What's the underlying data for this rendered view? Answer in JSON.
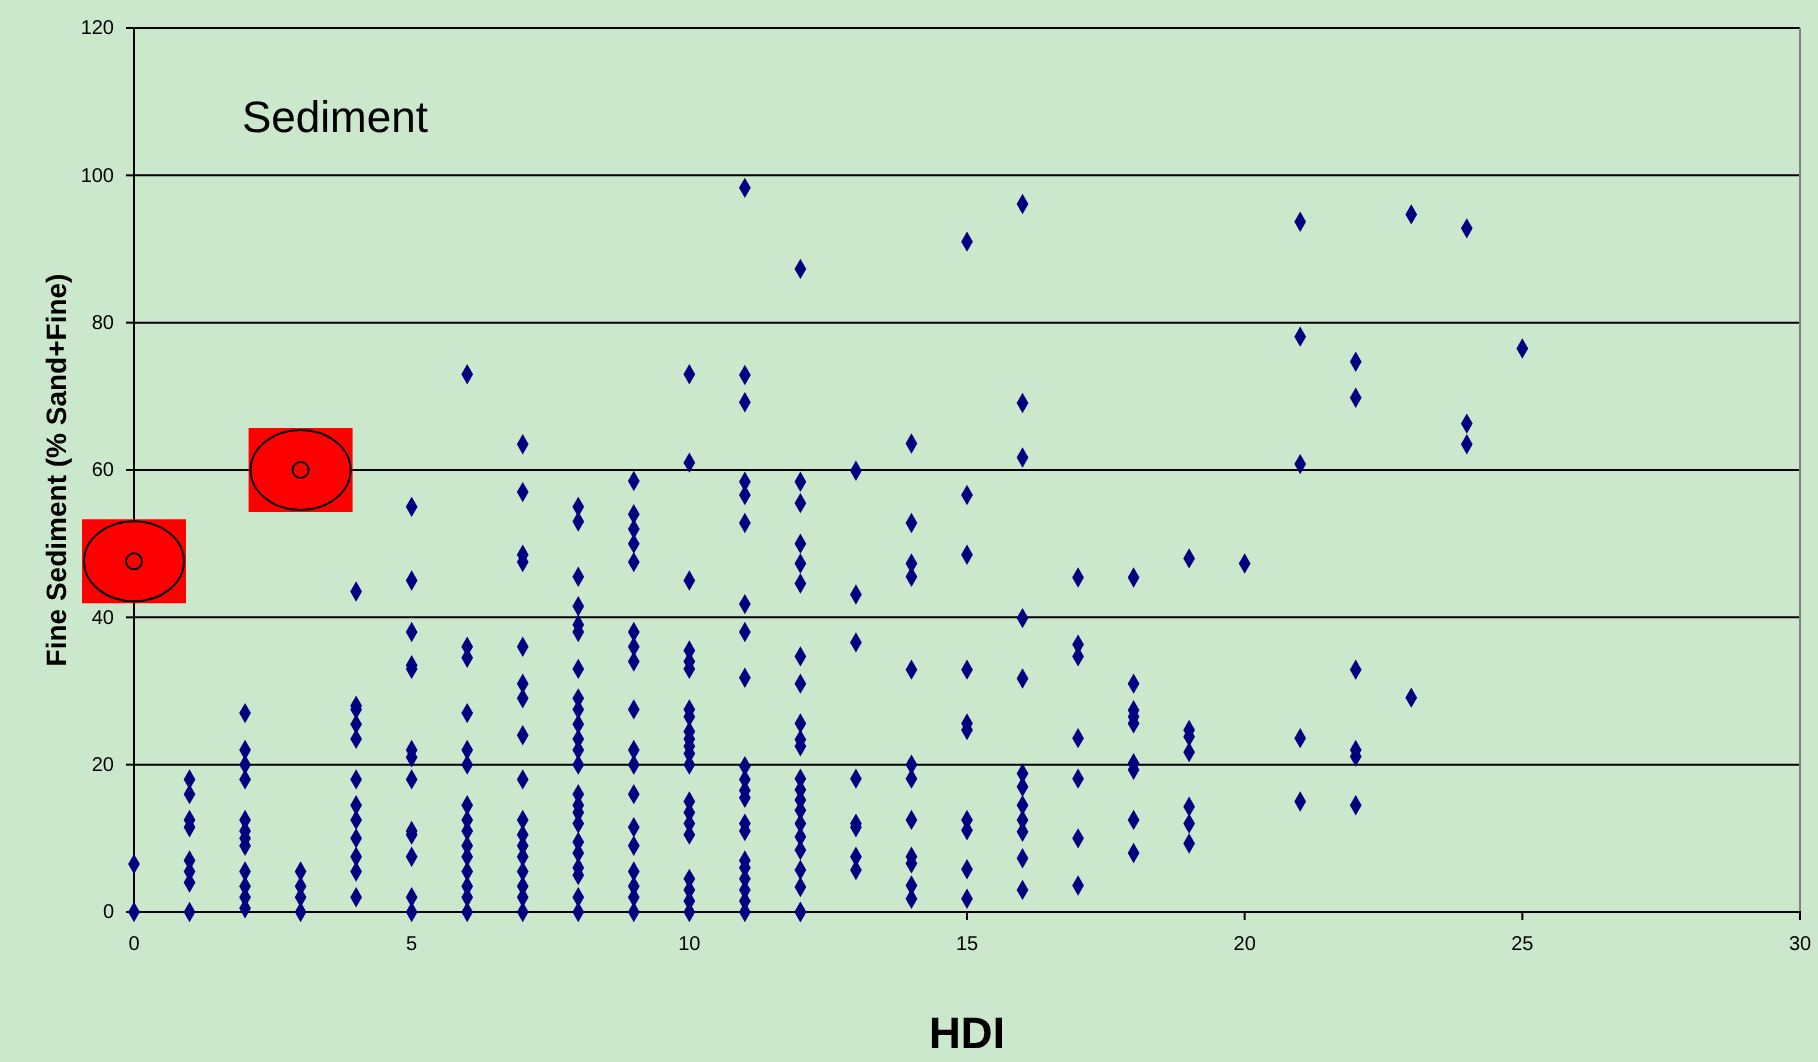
{
  "chart_data": {
    "type": "scatter",
    "title": "Sediment",
    "xlabel": "HDI",
    "ylabel": "Fine Sediment (% Sand+Fine)",
    "xlim": [
      0,
      30
    ],
    "xticks": [
      0,
      5,
      10,
      15,
      20,
      25,
      30
    ],
    "ylim": [
      0,
      120
    ],
    "yticks": [
      0,
      20,
      40,
      60,
      80,
      100,
      120
    ],
    "grid": "y",
    "series": [
      {
        "color": "#000080",
        "marker": "diamond",
        "x": [
          0,
          0,
          1,
          1,
          1,
          1,
          1,
          1,
          1,
          1,
          2,
          2,
          2,
          2,
          2,
          2,
          2,
          2,
          2,
          2,
          2,
          2,
          3,
          3,
          3,
          3,
          4,
          4,
          4,
          4,
          4,
          4,
          4,
          4,
          4,
          4,
          4,
          4,
          5,
          5,
          5,
          5,
          5,
          5,
          5,
          5,
          5,
          5,
          5,
          5,
          5,
          6,
          6,
          6,
          6,
          6,
          6,
          6,
          6,
          6,
          6,
          6,
          6,
          6,
          6,
          6,
          7,
          7,
          7,
          7,
          7,
          7,
          7,
          7,
          7,
          7,
          7,
          7,
          7,
          7,
          7,
          7,
          7,
          8,
          8,
          8,
          8,
          8,
          8,
          8,
          8,
          8,
          8,
          8,
          8,
          8,
          8,
          8,
          8,
          8,
          8,
          8,
          8,
          8,
          8,
          8,
          9,
          9,
          9,
          9,
          9,
          9,
          9,
          9,
          9,
          9,
          9,
          9,
          9,
          9,
          9,
          9,
          9,
          9,
          10,
          10,
          10,
          10,
          10,
          10,
          10,
          10,
          10,
          10,
          10,
          10,
          10,
          10,
          10,
          10,
          10,
          10,
          10,
          10,
          10,
          11,
          11,
          11,
          11,
          11,
          11,
          11,
          11,
          11,
          11,
          11,
          11,
          11,
          11,
          11,
          11,
          11,
          11,
          11,
          11,
          11,
          12,
          12,
          12,
          12,
          12,
          12,
          12,
          12,
          12,
          12,
          12,
          12,
          12,
          12,
          12,
          12,
          12,
          12,
          12,
          12,
          12,
          12,
          13,
          13,
          13,
          13,
          13,
          13,
          13,
          13,
          14,
          14,
          14,
          14,
          14,
          14,
          14,
          14,
          14,
          14,
          14,
          14,
          15,
          15,
          15,
          15,
          15,
          15,
          15,
          15,
          15,
          15,
          16,
          16,
          16,
          16,
          16,
          16,
          16,
          16,
          16,
          16,
          16,
          16,
          17,
          17,
          17,
          17,
          17,
          17,
          17,
          18,
          18,
          18,
          18,
          18,
          18,
          18,
          18,
          18,
          19,
          19,
          19,
          19,
          19,
          19,
          19,
          20,
          21,
          21,
          21,
          21,
          21,
          22,
          22,
          22,
          22,
          22,
          22,
          23,
          23,
          24,
          24,
          24,
          25
        ],
        "values": [
          0,
          6.5,
          0,
          4,
          5.5,
          7,
          11.5,
          12.5,
          16,
          18,
          0.5,
          2,
          3.5,
          5.5,
          9,
          10,
          11,
          12.5,
          18,
          20,
          22,
          27,
          0,
          2,
          3.5,
          5.5,
          2,
          5.5,
          7.5,
          10,
          12.5,
          14.5,
          18,
          23.5,
          25.5,
          27.5,
          28,
          43.5,
          0,
          2,
          7.5,
          10.5,
          11,
          18,
          21,
          22,
          33,
          33.5,
          38,
          45,
          55,
          0,
          2,
          3.5,
          5.5,
          7.5,
          9,
          11,
          12.5,
          14.5,
          20,
          22,
          27,
          34.5,
          36,
          73,
          0,
          2,
          3.5,
          5.5,
          7.5,
          9,
          10.5,
          12.5,
          18,
          24,
          29,
          31,
          36,
          47.5,
          48.5,
          57,
          63.5,
          0,
          2,
          5,
          6,
          8,
          9.5,
          12,
          13.5,
          14.5,
          16,
          20,
          22,
          23.5,
          25.5,
          27.5,
          29,
          33,
          38,
          39,
          41.5,
          45.5,
          53,
          55,
          0,
          2,
          3.5,
          5.5,
          9,
          11.5,
          16,
          20,
          22,
          27.5,
          34,
          36,
          38,
          47.5,
          50,
          52,
          54,
          58.5,
          0,
          1.5,
          3,
          4.5,
          10.5,
          12,
          13.5,
          15,
          20,
          21.5,
          22.5,
          23.5,
          24.5,
          26.5,
          27.5,
          33,
          34,
          35.5,
          45,
          61,
          73,
          0,
          1.5,
          3,
          4.5,
          6,
          7,
          11,
          12,
          15.5,
          16.5,
          18,
          19.8,
          31.8,
          38,
          41.8,
          52.8,
          56.6,
          58.4,
          69.2,
          72.9,
          98.3,
          0,
          3.4,
          5.7,
          8.4,
          10.2,
          12,
          13.8,
          15.2,
          16.6,
          18.1,
          22.5,
          23.4,
          25.6,
          31,
          34.7,
          44.6,
          47.3,
          50,
          55.5,
          58.4,
          87.3,
          0,
          5.7,
          7.5,
          11.5,
          12,
          18.1,
          36.6,
          43.1,
          59.9,
          1.8,
          3.6,
          6.6,
          7.5,
          12.5,
          18.1,
          20,
          32.9,
          45.5,
          47.3,
          52.8,
          63.6,
          1.8,
          5.8,
          11.1,
          12.5,
          24.7,
          25.6,
          32.9,
          48.5,
          56.6,
          91,
          3,
          7.3,
          10.9,
          12.5,
          14.5,
          17,
          18.8,
          31.7,
          39.9,
          61.7,
          69.1,
          96.1,
          3.6,
          10,
          18.1,
          23.6,
          34.7,
          36.3,
          45.4,
          8,
          12.5,
          19.3,
          20.2,
          25.6,
          26.5,
          27.4,
          31,
          45.4,
          9.3,
          12,
          14.3,
          21.7,
          23.8,
          24.7,
          48,
          47.3,
          15,
          23.6,
          60.8,
          78.1,
          93.7,
          14.5,
          21.1,
          22,
          32.9,
          69.8,
          74.7,
          29.1,
          94.7,
          63.5,
          66.3,
          92.8,
          76.5
        ]
      },
      {
        "color": "#ff0000",
        "marker": "circle",
        "x": [
          0,
          3
        ],
        "values": [
          47.6,
          60
        ]
      }
    ]
  }
}
